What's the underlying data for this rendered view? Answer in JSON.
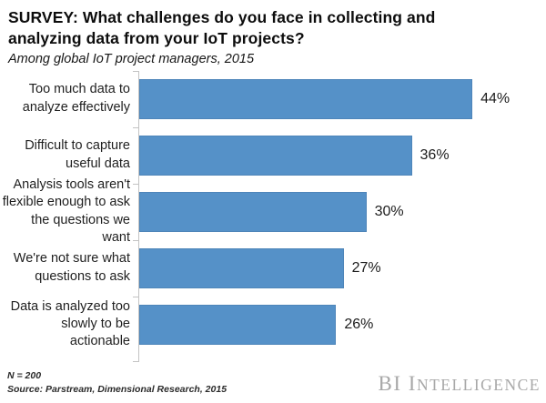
{
  "chart_data": {
    "type": "bar",
    "orientation": "horizontal",
    "title": "SURVEY: What challenges do you face in collecting and analyzing data from your IoT projects?",
    "subtitle": "Among global IoT project managers, 2015",
    "categories": [
      "Too much data to analyze effectively",
      "Difficult to capture useful data",
      "Analysis tools aren't flexible enough to ask the questions we want",
      "We're not sure what questions to ask",
      "Data is analyzed too slowly to be actionable"
    ],
    "values": [
      44,
      36,
      30,
      27,
      26
    ],
    "value_labels": [
      "44%",
      "36%",
      "30%",
      "27%",
      "26%"
    ],
    "unit": "percent",
    "xlim": [
      0,
      52
    ],
    "grid": false,
    "legend": "none",
    "bar_color": "#5591c8",
    "axis_color": "#c3c3c3"
  },
  "footer": {
    "sample_note": "N = 200",
    "source": "Source: Parstream, Dimensional Research, 2015",
    "logo_text_primary": "BI I",
    "logo_text_secondary": "NTELLIGENCE"
  }
}
